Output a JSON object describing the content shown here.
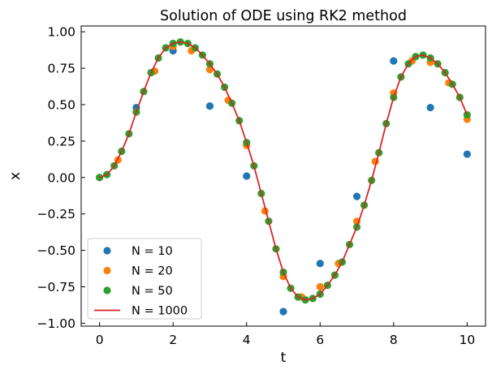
{
  "chart_data": {
    "type": "scatter",
    "title": "Solution of ODE using RK2 method",
    "xlabel": "t",
    "ylabel": "x",
    "xlim": [
      -0.5,
      10.5
    ],
    "ylim": [
      -1.02,
      1.04
    ],
    "x_ticks": [
      0,
      2,
      4,
      6,
      8,
      10
    ],
    "x_tick_labels": [
      "0",
      "2",
      "4",
      "6",
      "8",
      "10"
    ],
    "y_ticks": [
      -1.0,
      -0.75,
      -0.5,
      -0.25,
      0.0,
      0.25,
      0.5,
      0.75,
      1.0
    ],
    "y_tick_labels": [
      "−1.00",
      "−0.75",
      "−0.50",
      "−0.25",
      "0.00",
      "0.25",
      "0.50",
      "0.75",
      "1.00"
    ],
    "grid": false,
    "legend_position": "lower-left",
    "series": [
      {
        "name": "N = 10",
        "kind": "points",
        "color": "#1f77b4",
        "x": [
          0,
          1,
          2,
          3,
          4,
          5,
          6,
          7,
          8,
          9,
          10
        ],
        "y": [
          0.0,
          0.48,
          0.87,
          0.49,
          0.01,
          -0.92,
          -0.59,
          -0.13,
          0.8,
          0.48,
          0.16
        ]
      },
      {
        "name": "N = 20",
        "kind": "points",
        "color": "#ff7f0e",
        "x": [
          0,
          0.5,
          1,
          1.5,
          2,
          2.5,
          3,
          3.5,
          4,
          4.5,
          5,
          5.5,
          6,
          6.5,
          7,
          7.5,
          8,
          8.5,
          9,
          9.5,
          10
        ],
        "y": [
          0.0,
          0.12,
          0.45,
          0.73,
          0.9,
          0.87,
          0.74,
          0.53,
          0.22,
          -0.23,
          -0.68,
          -0.82,
          -0.75,
          -0.59,
          -0.3,
          0.11,
          0.58,
          0.8,
          0.79,
          0.65,
          0.4
        ]
      },
      {
        "name": "N = 50",
        "kind": "points",
        "color": "#2ca02c",
        "x": [
          0,
          0.2,
          0.4,
          0.6,
          0.8,
          1.0,
          1.2,
          1.4,
          1.6,
          1.8,
          2.0,
          2.2,
          2.4,
          2.6,
          2.8,
          3.0,
          3.2,
          3.4,
          3.6,
          3.8,
          4.0,
          4.2,
          4.4,
          4.6,
          4.8,
          5.0,
          5.2,
          5.4,
          5.6,
          5.8,
          6.0,
          6.2,
          6.4,
          6.6,
          6.8,
          7.0,
          7.2,
          7.4,
          7.6,
          7.8,
          8.0,
          8.2,
          8.4,
          8.6,
          8.8,
          9.0,
          9.2,
          9.4,
          9.6,
          9.8,
          10.0
        ],
        "y": [
          0.0,
          0.02,
          0.08,
          0.18,
          0.3,
          0.45,
          0.59,
          0.72,
          0.82,
          0.89,
          0.92,
          0.93,
          0.92,
          0.89,
          0.84,
          0.78,
          0.71,
          0.62,
          0.51,
          0.39,
          0.24,
          0.08,
          -0.11,
          -0.3,
          -0.49,
          -0.65,
          -0.76,
          -0.82,
          -0.84,
          -0.83,
          -0.8,
          -0.74,
          -0.67,
          -0.58,
          -0.46,
          -0.34,
          -0.19,
          -0.02,
          0.17,
          0.37,
          0.55,
          0.69,
          0.78,
          0.83,
          0.84,
          0.82,
          0.78,
          0.72,
          0.64,
          0.55,
          0.43
        ]
      },
      {
        "name": "N = 1000",
        "kind": "line",
        "color": "#d62728",
        "x": [
          0,
          0.2,
          0.4,
          0.6,
          0.8,
          1.0,
          1.2,
          1.4,
          1.6,
          1.8,
          2.0,
          2.2,
          2.4,
          2.6,
          2.8,
          3.0,
          3.2,
          3.4,
          3.6,
          3.8,
          4.0,
          4.2,
          4.4,
          4.6,
          4.8,
          5.0,
          5.2,
          5.4,
          5.6,
          5.8,
          6.0,
          6.2,
          6.4,
          6.6,
          6.8,
          7.0,
          7.2,
          7.4,
          7.6,
          7.8,
          8.0,
          8.2,
          8.4,
          8.6,
          8.8,
          9.0,
          9.2,
          9.4,
          9.6,
          9.8,
          10.0
        ],
        "y": [
          0.0,
          0.02,
          0.08,
          0.18,
          0.3,
          0.45,
          0.59,
          0.72,
          0.82,
          0.89,
          0.92,
          0.93,
          0.92,
          0.89,
          0.84,
          0.78,
          0.71,
          0.62,
          0.51,
          0.39,
          0.24,
          0.08,
          -0.11,
          -0.3,
          -0.49,
          -0.65,
          -0.76,
          -0.82,
          -0.84,
          -0.83,
          -0.8,
          -0.74,
          -0.67,
          -0.58,
          -0.46,
          -0.34,
          -0.19,
          -0.02,
          0.17,
          0.37,
          0.55,
          0.69,
          0.78,
          0.83,
          0.84,
          0.82,
          0.78,
          0.72,
          0.64,
          0.55,
          0.43
        ]
      }
    ]
  }
}
